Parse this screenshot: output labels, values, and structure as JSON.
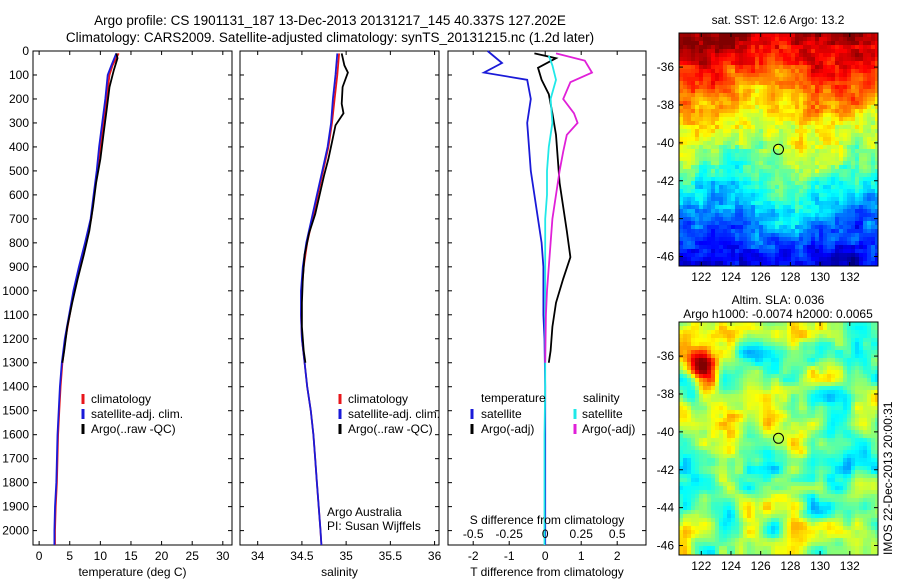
{
  "title_line1": "Argo profile: CS 1901131_187 13-Dec-2013 20131217_145 40.337S 127.202E",
  "title_line2": "Climatology: CARS2009. Satellite-adjusted climatology: synTS_20131215.nc (1.2d later)",
  "colors": {
    "climatology": "#e8161b",
    "satellite": "#1a1ad8",
    "argo": "#000000",
    "sat_salinity": "#20e8e8",
    "argo_salinity": "#e020d8"
  },
  "chart_data": [
    {
      "type": "line",
      "xlabel": "temperature (deg C)",
      "xticks": [
        0,
        5,
        10,
        15,
        20,
        25,
        30
      ],
      "xlim": [
        -1,
        31.5
      ],
      "ylim": [
        0,
        2060
      ],
      "yticks": [
        0,
        100,
        200,
        300,
        400,
        500,
        600,
        700,
        800,
        900,
        1000,
        1100,
        1200,
        1300,
        1400,
        1500,
        1600,
        1700,
        1800,
        1900,
        2000
      ],
      "legend": [
        "climatology",
        "satellite-adj. clim.",
        "Argo(..raw -QC)"
      ],
      "series": [
        {
          "name": "climatology",
          "color": "#e8161b",
          "points": [
            [
              13,
              10
            ],
            [
              12,
              60
            ],
            [
              11.5,
              100
            ],
            [
              11,
              200
            ],
            [
              10.5,
              300
            ],
            [
              10,
              400
            ],
            [
              9.5,
              500
            ],
            [
              9,
              600
            ],
            [
              8.5,
              700
            ],
            [
              7.6,
              800
            ],
            [
              6.6,
              900
            ],
            [
              5.7,
              1000
            ],
            [
              5,
              1100
            ],
            [
              4.3,
              1200
            ],
            [
              3.8,
              1300
            ],
            [
              3.5,
              1400
            ],
            [
              3.3,
              1500
            ],
            [
              3.1,
              1600
            ],
            [
              3,
              1700
            ],
            [
              2.9,
              1800
            ],
            [
              2.7,
              1900
            ],
            [
              2.6,
              2000
            ],
            [
              2.6,
              2060
            ]
          ]
        },
        {
          "name": "satellite-adj. clim.",
          "color": "#1a1ad8",
          "points": [
            [
              12.6,
              10
            ],
            [
              11.8,
              60
            ],
            [
              11.2,
              100
            ],
            [
              10.8,
              200
            ],
            [
              10.3,
              300
            ],
            [
              9.8,
              400
            ],
            [
              9.4,
              500
            ],
            [
              8.9,
              600
            ],
            [
              8.4,
              700
            ],
            [
              7.5,
              800
            ],
            [
              6.5,
              900
            ],
            [
              5.6,
              1000
            ],
            [
              4.9,
              1100
            ],
            [
              4.2,
              1200
            ],
            [
              3.7,
              1300
            ],
            [
              3.4,
              1400
            ],
            [
              3.2,
              1500
            ],
            [
              3,
              1600
            ],
            [
              2.9,
              1700
            ],
            [
              2.8,
              1800
            ],
            [
              2.6,
              1900
            ],
            [
              2.5,
              2000
            ],
            [
              2.5,
              2060
            ]
          ]
        },
        {
          "name": "Argo(..raw -QC)",
          "color": "#000000",
          "points": [
            [
              12.6,
              10
            ],
            [
              12.8,
              30
            ],
            [
              12.2,
              80
            ],
            [
              11.5,
              150
            ],
            [
              11,
              250
            ],
            [
              10.5,
              350
            ],
            [
              10,
              450
            ],
            [
              9.3,
              550
            ],
            [
              8.8,
              650
            ],
            [
              8.2,
              750
            ],
            [
              7.3,
              850
            ],
            [
              6.3,
              950
            ],
            [
              5.4,
              1050
            ],
            [
              4.6,
              1150
            ],
            [
              4.1,
              1250
            ],
            [
              3.8,
              1300
            ]
          ]
        }
      ]
    },
    {
      "type": "line",
      "xlabel": "salinity",
      "xticks": [
        34,
        34.5,
        35,
        35.5,
        36
      ],
      "xlim": [
        33.8,
        36.05
      ],
      "ylim": [
        0,
        2060
      ],
      "legend": [
        "climatology",
        "satellite-adj. clim.",
        "Argo(..raw -QC)"
      ],
      "annotation": [
        "Argo Australia",
        "PI: Susan Wijffels"
      ],
      "series": [
        {
          "name": "climatology",
          "color": "#e8161b",
          "points": [
            [
              34.92,
              10
            ],
            [
              34.9,
              100
            ],
            [
              34.87,
              200
            ],
            [
              34.84,
              300
            ],
            [
              34.8,
              400
            ],
            [
              34.74,
              500
            ],
            [
              34.68,
              600
            ],
            [
              34.62,
              700
            ],
            [
              34.56,
              800
            ],
            [
              34.52,
              900
            ],
            [
              34.5,
              1000
            ],
            [
              34.49,
              1100
            ],
            [
              34.5,
              1200
            ],
            [
              34.53,
              1300
            ],
            [
              34.56,
              1400
            ],
            [
              34.6,
              1500
            ],
            [
              34.63,
              1600
            ],
            [
              34.65,
              1700
            ],
            [
              34.67,
              1800
            ],
            [
              34.69,
              1900
            ],
            [
              34.71,
              2000
            ],
            [
              34.72,
              2060
            ]
          ]
        },
        {
          "name": "satellite-adj. clim.",
          "color": "#1a1ad8",
          "points": [
            [
              34.9,
              10
            ],
            [
              34.88,
              100
            ],
            [
              34.85,
              200
            ],
            [
              34.83,
              300
            ],
            [
              34.79,
              400
            ],
            [
              34.73,
              500
            ],
            [
              34.67,
              600
            ],
            [
              34.61,
              700
            ],
            [
              34.55,
              800
            ],
            [
              34.51,
              900
            ],
            [
              34.49,
              1000
            ],
            [
              34.49,
              1100
            ],
            [
              34.5,
              1200
            ],
            [
              34.53,
              1300
            ],
            [
              34.56,
              1400
            ],
            [
              34.6,
              1500
            ],
            [
              34.63,
              1600
            ],
            [
              34.65,
              1700
            ],
            [
              34.67,
              1800
            ],
            [
              34.69,
              1900
            ],
            [
              34.71,
              2000
            ],
            [
              34.72,
              2060
            ]
          ]
        },
        {
          "name": "Argo(..raw -QC)",
          "color": "#000000",
          "points": [
            [
              34.95,
              10
            ],
            [
              34.98,
              60
            ],
            [
              35.02,
              90
            ],
            [
              34.96,
              150
            ],
            [
              34.95,
              220
            ],
            [
              34.97,
              260
            ],
            [
              34.88,
              310
            ],
            [
              34.84,
              380
            ],
            [
              34.8,
              450
            ],
            [
              34.75,
              520
            ],
            [
              34.7,
              600
            ],
            [
              34.65,
              680
            ],
            [
              34.58,
              760
            ],
            [
              34.53,
              850
            ],
            [
              34.51,
              950
            ],
            [
              34.5,
              1050
            ],
            [
              34.5,
              1150
            ],
            [
              34.52,
              1250
            ],
            [
              34.54,
              1300
            ]
          ]
        }
      ]
    },
    {
      "type": "line",
      "xlabel": "T difference from climatology",
      "xticks": [
        -2,
        -1,
        0,
        1,
        2
      ],
      "xlim": [
        -2.7,
        2.8
      ],
      "ylim": [
        0,
        2060
      ],
      "top_axis_label": "S difference from climatology",
      "top_ticks": [
        "-0.5",
        "-0.25",
        "0",
        "0.25",
        "0.5"
      ],
      "top_tick_values": [
        -0.5,
        -0.25,
        0,
        0.25,
        0.5
      ],
      "legend_left": {
        "header": "temperature",
        "items": [
          "satellite",
          "Argo(-adj)"
        ]
      },
      "legend_right": {
        "header": "salinity",
        "items": [
          "satellite",
          "Argo(-adj)"
        ]
      },
      "series": [
        {
          "name": "satellite",
          "color": "#1a1ad8",
          "points": [
            [
              -1.6,
              0
            ],
            [
              -1.2,
              50
            ],
            [
              -1.7,
              90
            ],
            [
              -0.5,
              120
            ],
            [
              -0.4,
              200
            ],
            [
              -0.5,
              300
            ],
            [
              -0.45,
              400
            ],
            [
              -0.4,
              500
            ],
            [
              -0.3,
              600
            ],
            [
              -0.2,
              700
            ],
            [
              -0.1,
              800
            ],
            [
              -0.05,
              900
            ],
            [
              -0.05,
              1000
            ],
            [
              -0.05,
              1100
            ],
            [
              -0.02,
              1200
            ],
            [
              0,
              1400
            ],
            [
              0,
              1600
            ],
            [
              0,
              1800
            ],
            [
              0,
              2060
            ]
          ]
        },
        {
          "name": "Argo(-adj)",
          "color": "#000000",
          "points": [
            [
              -0.3,
              10
            ],
            [
              0.3,
              30
            ],
            [
              -0.2,
              70
            ],
            [
              -0.1,
              120
            ],
            [
              0.1,
              180
            ],
            [
              0.2,
              260
            ],
            [
              0.3,
              350
            ],
            [
              0.35,
              450
            ],
            [
              0.4,
              550
            ],
            [
              0.5,
              650
            ],
            [
              0.6,
              750
            ],
            [
              0.7,
              860
            ],
            [
              0.5,
              950
            ],
            [
              0.3,
              1050
            ],
            [
              0.2,
              1150
            ],
            [
              0.15,
              1250
            ],
            [
              0.1,
              1300
            ]
          ]
        },
        {
          "name": "satellite",
          "color": "#20e8e8",
          "points": [
            [
              0.1,
              20
            ],
            [
              0.2,
              60
            ],
            [
              0.3,
              120
            ],
            [
              0.15,
              200
            ],
            [
              0.2,
              300
            ],
            [
              0.1,
              400
            ],
            [
              0.05,
              500
            ],
            [
              0.05,
              600
            ],
            [
              0,
              700
            ],
            [
              0,
              800
            ],
            [
              0,
              1000
            ],
            [
              0,
              1200
            ],
            [
              0,
              1400
            ],
            [
              -0.02,
              1600
            ],
            [
              -0.02,
              1800
            ],
            [
              -0.02,
              2060
            ]
          ]
        },
        {
          "name": "Argo(-adj)",
          "color": "#e020d8",
          "points": [
            [
              0.3,
              10
            ],
            [
              1.1,
              40
            ],
            [
              1.3,
              90
            ],
            [
              0.7,
              130
            ],
            [
              0.5,
              200
            ],
            [
              0.8,
              260
            ],
            [
              0.9,
              300
            ],
            [
              0.6,
              350
            ],
            [
              0.5,
              420
            ],
            [
              0.4,
              500
            ],
            [
              0.3,
              600
            ],
            [
              0.2,
              700
            ],
            [
              0.15,
              800
            ],
            [
              0.1,
              900
            ],
            [
              0.05,
              1000
            ],
            [
              0.02,
              1100
            ],
            [
              0,
              1300
            ]
          ]
        }
      ]
    },
    {
      "type": "heatmap",
      "title": "sat. SST: 12.6 Argo: 13.2",
      "xticks": [
        "122",
        "124",
        "126",
        "128",
        "130",
        "132"
      ],
      "xtick_values": [
        122,
        124,
        126,
        128,
        130,
        132
      ],
      "yticks": [
        "-36",
        "-38",
        "-40",
        "-42",
        "-44",
        "-46"
      ],
      "ytick_values": [
        -36,
        -38,
        -40,
        -42,
        -44,
        -46
      ],
      "xlim": [
        120.5,
        133.9
      ],
      "ylim": [
        -46.5,
        -34.2
      ],
      "marker": [
        127.2,
        -40.34
      ]
    },
    {
      "type": "heatmap",
      "title": "Altim. SLA: 0.036",
      "subtitle": "Argo h1000: -0.0074 h2000: 0.0065",
      "xticks": [
        "122",
        "124",
        "126",
        "128",
        "130",
        "132"
      ],
      "xtick_values": [
        122,
        124,
        126,
        128,
        130,
        132
      ],
      "yticks": [
        "-36",
        "-38",
        "-40",
        "-42",
        "-44",
        "-46"
      ],
      "ytick_values": [
        -36,
        -38,
        -40,
        -42,
        -44,
        -46
      ],
      "xlim": [
        120.5,
        133.9
      ],
      "ylim": [
        -46.5,
        -34.2
      ],
      "marker": [
        127.2,
        -40.34
      ]
    }
  ],
  "side_label": "IMOS 22-Dec-2013 20:00:31"
}
